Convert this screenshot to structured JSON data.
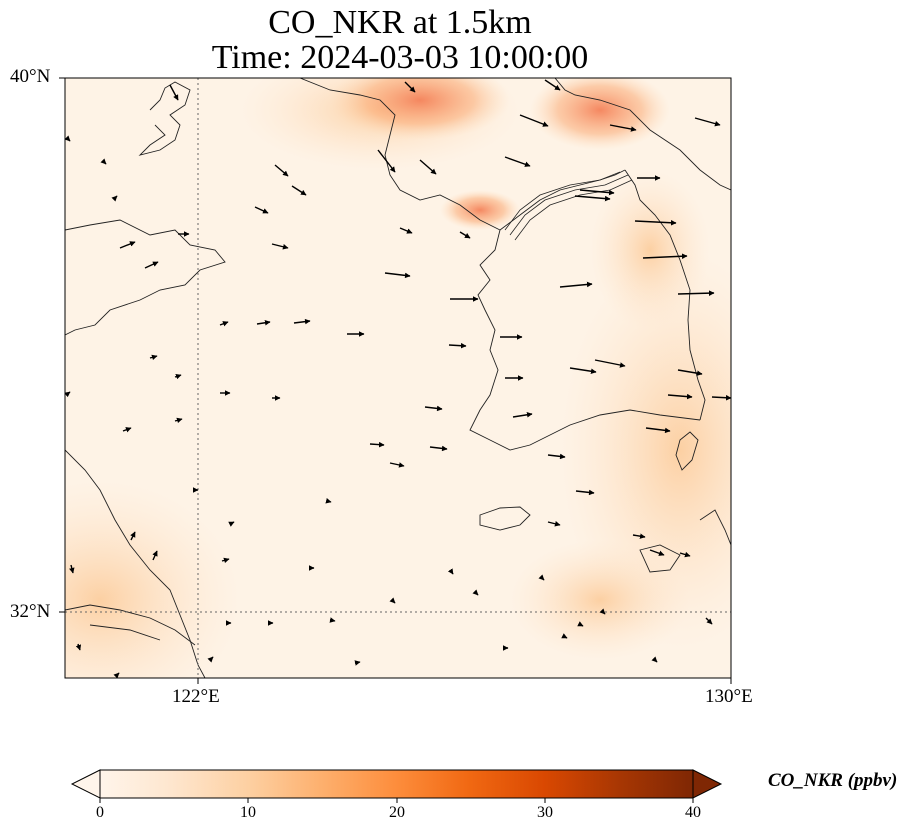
{
  "title": {
    "line1": "CO_NKR at 1.5km",
    "line2": "Time: 2024-03-03 10:00:00"
  },
  "axes": {
    "lat_ticks": [
      {
        "label": "40°N",
        "value": 40
      },
      {
        "label": "32°N",
        "value": 32
      }
    ],
    "lon_ticks": [
      {
        "label": "122°E",
        "value": 122
      },
      {
        "label": "130°E",
        "value": 130
      }
    ],
    "lon_range": [
      120,
      130
    ],
    "lat_range": [
      31,
      40
    ],
    "gridlines": "dotted"
  },
  "colorbar": {
    "label": "CO_NKR (ppbv)",
    "ticks": [
      "0",
      "10",
      "20",
      "30",
      "40"
    ],
    "range": [
      0,
      40
    ],
    "extend": "both",
    "colormap": [
      "#fff5eb",
      "#fee6ce",
      "#fdd0a2",
      "#fdae6b",
      "#fd8d3c",
      "#f16913",
      "#d94801",
      "#a63603",
      "#7f2704"
    ]
  },
  "colors": {
    "coastline": "#222222",
    "wind_arrow": "#000000",
    "gridline": "#666666"
  }
}
